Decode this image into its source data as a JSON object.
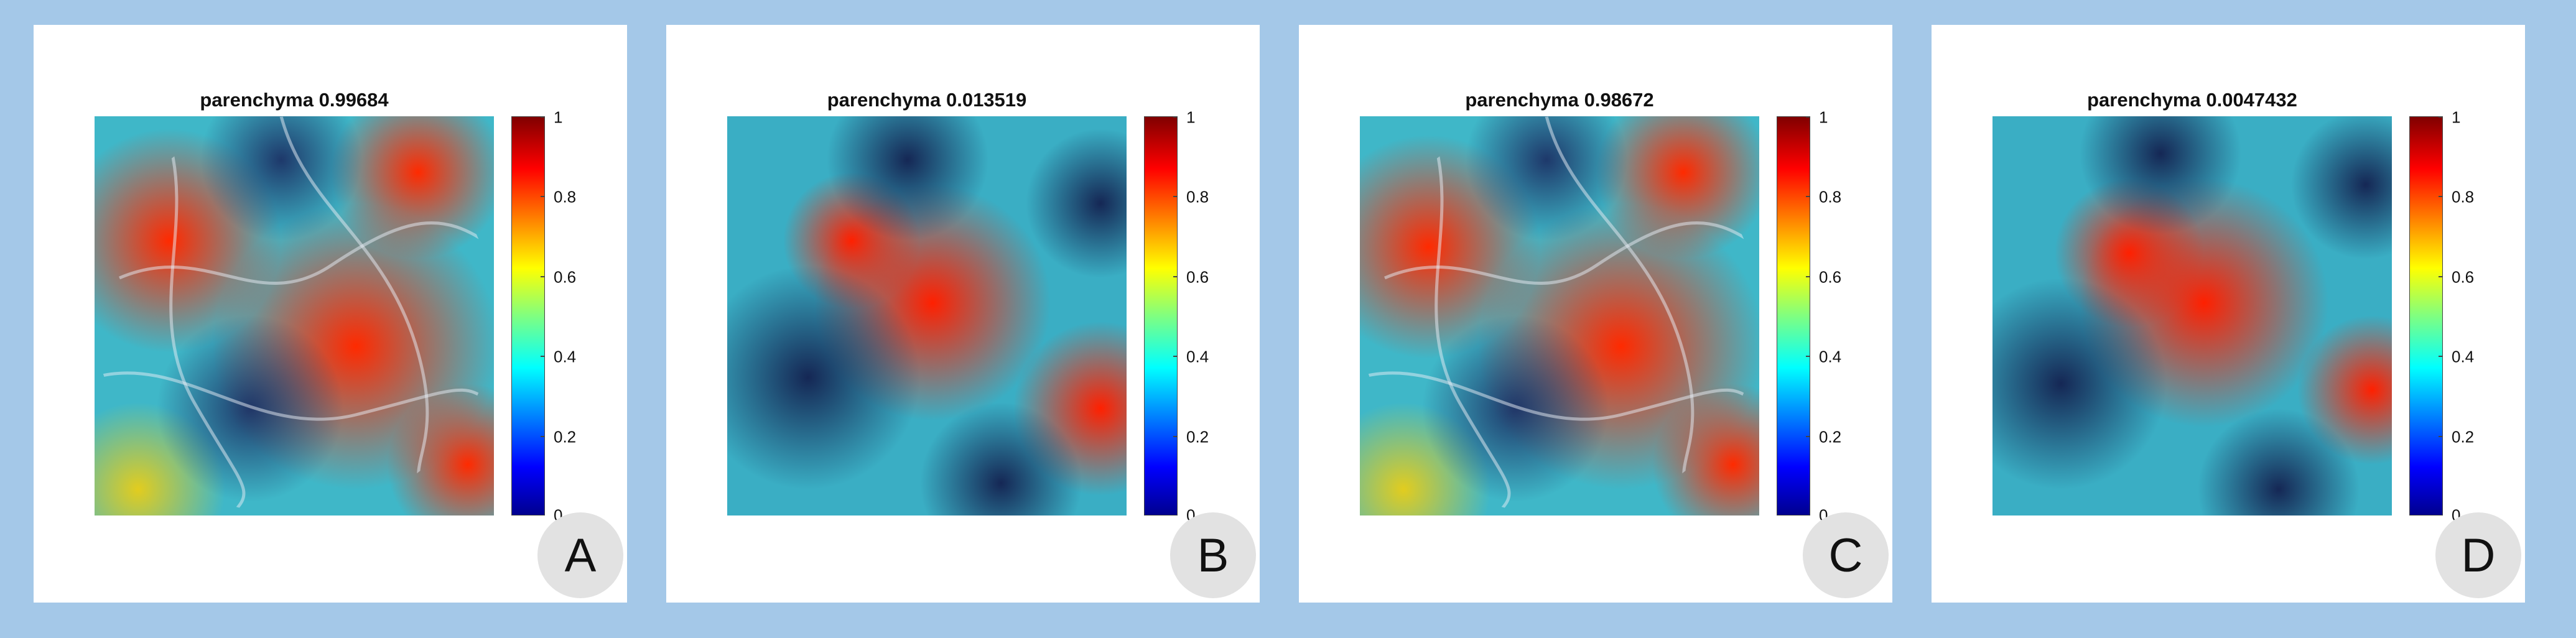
{
  "panels": [
    {
      "title": "parenchyma 0.99684",
      "letter": "A"
    },
    {
      "title": "parenchyma 0.013519",
      "letter": "B"
    },
    {
      "title": "parenchyma 0.98672",
      "letter": "C"
    },
    {
      "title": "parenchyma 0.0047432",
      "letter": "D"
    }
  ],
  "colorbar": {
    "ticks": [
      "1",
      "0.8",
      "0.6",
      "0.4",
      "0.2",
      "0"
    ]
  },
  "colors": {
    "frame": "#a4c8e8",
    "panel": "#ffffff",
    "badge": "#e2e2e2"
  }
}
